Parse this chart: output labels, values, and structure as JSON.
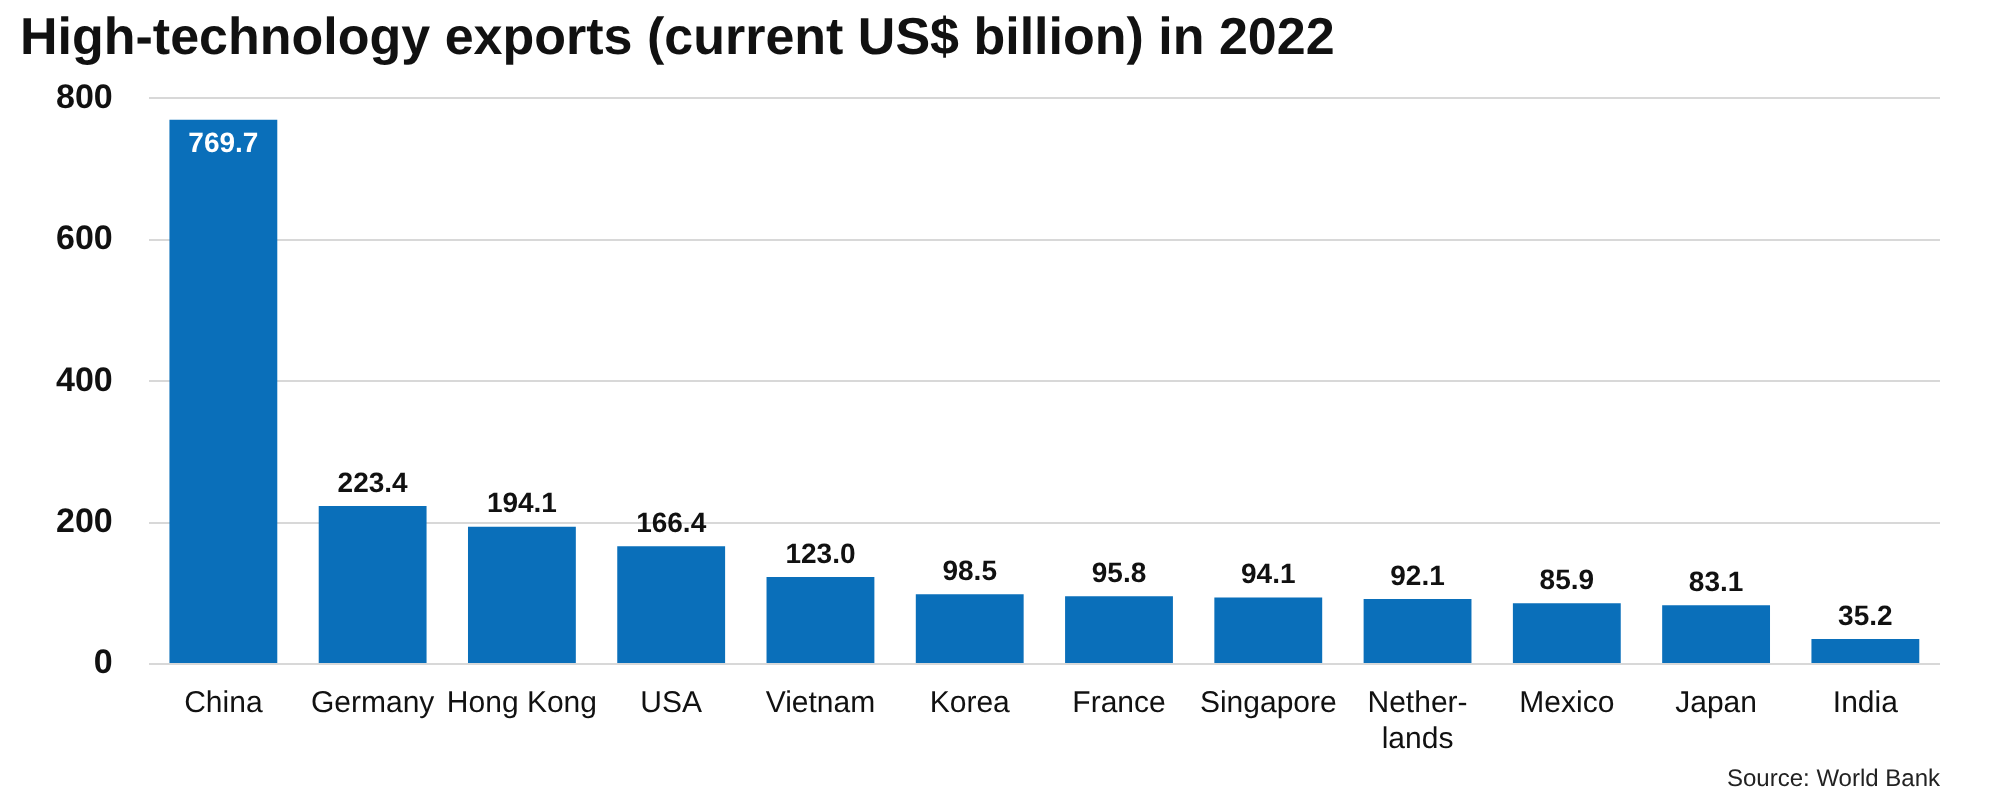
{
  "chart_data": {
    "type": "bar",
    "title": "High-technology exports (current US$ billion) in 2022",
    "categories": [
      "China",
      "Germany",
      "Hong Kong",
      "USA",
      "Vietnam",
      "Korea",
      "France",
      "Singapore",
      "Nether-\nlands",
      "Mexico",
      "Japan",
      "India"
    ],
    "values": [
      769.7,
      223.4,
      194.1,
      166.4,
      123.0,
      98.5,
      95.8,
      94.1,
      92.1,
      85.9,
      83.1,
      35.2
    ],
    "value_labels": [
      "769.7",
      "223.4",
      "194.1",
      "166.4",
      "123.0",
      "98.5",
      "95.8",
      "94.1",
      "92.1",
      "85.9",
      "83.1",
      "35.2"
    ],
    "color": "#0a6fba",
    "ylim": [
      0,
      800
    ],
    "yticks": [
      0,
      200,
      400,
      600,
      800
    ],
    "grid": "y",
    "annotations": [
      "Source: World Bank"
    ]
  }
}
